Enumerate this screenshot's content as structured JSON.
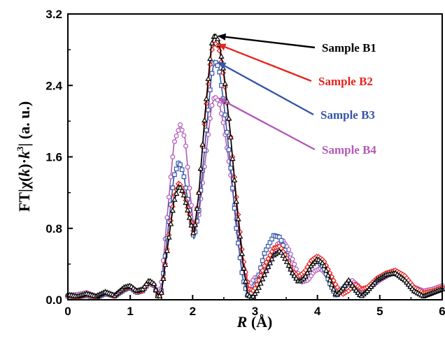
{
  "chart_data": {
    "type": "line",
    "xlabel_var": "R",
    "xlabel_unit": " (Å)",
    "ylabel_pre": "FT|χ(",
    "ylabel_k": "k",
    "ylabel_mid": ")·",
    "ylabel_k2": "k",
    "ylabel_sup": "3",
    "ylabel_post": "| (a. u.)",
    "xlim": [
      0,
      6
    ],
    "ylim": [
      0,
      3.2
    ],
    "xticks": [
      "0",
      "1",
      "2",
      "3",
      "4",
      "5",
      "6"
    ],
    "xtick_values": [
      0,
      1,
      2,
      3,
      4,
      5,
      6
    ],
    "yticks": [
      "0.0",
      "0.8",
      "1.6",
      "2.4",
      "3.2"
    ],
    "ytick_values": [
      0,
      0.8,
      1.6,
      2.4,
      3.2
    ],
    "grid": false,
    "series": [
      {
        "name": "Sample B1",
        "color": "#000000",
        "marker": "triangle",
        "label_color": "#000000",
        "peak": [
          2.35,
          2.97
        ],
        "points": [
          [
            0,
            0.06
          ],
          [
            0.15,
            0.04
          ],
          [
            0.3,
            0.07
          ],
          [
            0.45,
            0.04
          ],
          [
            0.6,
            0.09
          ],
          [
            0.75,
            0.05
          ],
          [
            0.9,
            0.14
          ],
          [
            1.0,
            0.16
          ],
          [
            1.1,
            0.1
          ],
          [
            1.2,
            0.12
          ],
          [
            1.3,
            0.22
          ],
          [
            1.38,
            0.18
          ],
          [
            1.45,
            0.02
          ],
          [
            1.5,
            0.08
          ],
          [
            1.6,
            0.6
          ],
          [
            1.7,
            1.1
          ],
          [
            1.78,
            1.28
          ],
          [
            1.85,
            1.2
          ],
          [
            1.95,
            0.92
          ],
          [
            2.02,
            0.72
          ],
          [
            2.1,
            1.2
          ],
          [
            2.2,
            2.1
          ],
          [
            2.3,
            2.85
          ],
          [
            2.35,
            2.97
          ],
          [
            2.42,
            2.9
          ],
          [
            2.5,
            2.55
          ],
          [
            2.6,
            1.9
          ],
          [
            2.7,
            1.1
          ],
          [
            2.8,
            0.45
          ],
          [
            2.88,
            0.06
          ],
          [
            2.95,
            0.02
          ],
          [
            3.05,
            0.12
          ],
          [
            3.15,
            0.28
          ],
          [
            3.3,
            0.5
          ],
          [
            3.4,
            0.55
          ],
          [
            3.5,
            0.44
          ],
          [
            3.6,
            0.3
          ],
          [
            3.7,
            0.2
          ],
          [
            3.8,
            0.25
          ],
          [
            3.9,
            0.38
          ],
          [
            4.0,
            0.46
          ],
          [
            4.1,
            0.4
          ],
          [
            4.2,
            0.22
          ],
          [
            4.3,
            0.05
          ],
          [
            4.4,
            0.12
          ],
          [
            4.5,
            0.22
          ],
          [
            4.6,
            0.12
          ],
          [
            4.7,
            0.04
          ],
          [
            4.8,
            0.1
          ],
          [
            4.95,
            0.22
          ],
          [
            5.1,
            0.28
          ],
          [
            5.25,
            0.3
          ],
          [
            5.4,
            0.22
          ],
          [
            5.55,
            0.1
          ],
          [
            5.7,
            0.04
          ],
          [
            5.85,
            0.08
          ],
          [
            6.0,
            0.12
          ]
        ]
      },
      {
        "name": "Sample B2",
        "color": "#e8231e",
        "marker": "diamond",
        "label_color": "#e8231e",
        "peak": [
          2.35,
          2.88
        ],
        "points": [
          [
            0,
            0.05
          ],
          [
            0.15,
            0.03
          ],
          [
            0.3,
            0.06
          ],
          [
            0.45,
            0.03
          ],
          [
            0.6,
            0.08
          ],
          [
            0.75,
            0.04
          ],
          [
            0.9,
            0.12
          ],
          [
            1.0,
            0.15
          ],
          [
            1.1,
            0.09
          ],
          [
            1.2,
            0.1
          ],
          [
            1.3,
            0.2
          ],
          [
            1.38,
            0.17
          ],
          [
            1.45,
            0.03
          ],
          [
            1.5,
            0.08
          ],
          [
            1.6,
            0.62
          ],
          [
            1.7,
            1.15
          ],
          [
            1.78,
            1.32
          ],
          [
            1.85,
            1.22
          ],
          [
            1.95,
            0.95
          ],
          [
            2.02,
            0.74
          ],
          [
            2.1,
            1.2
          ],
          [
            2.2,
            2.05
          ],
          [
            2.3,
            2.78
          ],
          [
            2.35,
            2.88
          ],
          [
            2.42,
            2.83
          ],
          [
            2.5,
            2.5
          ],
          [
            2.6,
            1.9
          ],
          [
            2.7,
            1.15
          ],
          [
            2.8,
            0.5
          ],
          [
            2.9,
            0.12
          ],
          [
            2.98,
            0.1
          ],
          [
            3.05,
            0.2
          ],
          [
            3.15,
            0.38
          ],
          [
            3.3,
            0.58
          ],
          [
            3.4,
            0.6
          ],
          [
            3.5,
            0.48
          ],
          [
            3.6,
            0.32
          ],
          [
            3.7,
            0.26
          ],
          [
            3.8,
            0.32
          ],
          [
            3.9,
            0.44
          ],
          [
            4.0,
            0.49
          ],
          [
            4.1,
            0.44
          ],
          [
            4.2,
            0.3
          ],
          [
            4.3,
            0.16
          ],
          [
            4.4,
            0.06
          ],
          [
            4.5,
            0.1
          ],
          [
            4.6,
            0.18
          ],
          [
            4.7,
            0.12
          ],
          [
            4.8,
            0.14
          ],
          [
            4.95,
            0.24
          ],
          [
            5.1,
            0.3
          ],
          [
            5.25,
            0.33
          ],
          [
            5.4,
            0.27
          ],
          [
            5.55,
            0.14
          ],
          [
            5.7,
            0.08
          ],
          [
            5.85,
            0.1
          ],
          [
            6.0,
            0.14
          ]
        ]
      },
      {
        "name": "Sample B3",
        "color": "#3455a8",
        "marker": "square",
        "label_color": "#3455a8",
        "peak": [
          2.35,
          2.68
        ],
        "points": [
          [
            0,
            0.04
          ],
          [
            0.15,
            0.03
          ],
          [
            0.3,
            0.05
          ],
          [
            0.45,
            0.02
          ],
          [
            0.6,
            0.07
          ],
          [
            0.75,
            0.04
          ],
          [
            0.9,
            0.11
          ],
          [
            1.0,
            0.14
          ],
          [
            1.1,
            0.08
          ],
          [
            1.2,
            0.1
          ],
          [
            1.3,
            0.19
          ],
          [
            1.38,
            0.16
          ],
          [
            1.45,
            0.03
          ],
          [
            1.5,
            0.1
          ],
          [
            1.6,
            0.75
          ],
          [
            1.7,
            1.38
          ],
          [
            1.78,
            1.55
          ],
          [
            1.85,
            1.42
          ],
          [
            1.95,
            1.0
          ],
          [
            2.02,
            0.68
          ],
          [
            2.1,
            1.0
          ],
          [
            2.2,
            1.75
          ],
          [
            2.3,
            2.5
          ],
          [
            2.35,
            2.68
          ],
          [
            2.42,
            2.6
          ],
          [
            2.5,
            2.2
          ],
          [
            2.6,
            1.55
          ],
          [
            2.7,
            0.8
          ],
          [
            2.8,
            0.25
          ],
          [
            2.88,
            0.05
          ],
          [
            2.95,
            0.08
          ],
          [
            3.05,
            0.25
          ],
          [
            3.15,
            0.52
          ],
          [
            3.3,
            0.72
          ],
          [
            3.4,
            0.7
          ],
          [
            3.5,
            0.52
          ],
          [
            3.6,
            0.3
          ],
          [
            3.7,
            0.2
          ],
          [
            3.8,
            0.28
          ],
          [
            3.9,
            0.4
          ],
          [
            4.0,
            0.44
          ],
          [
            4.1,
            0.36
          ],
          [
            4.2,
            0.18
          ],
          [
            4.3,
            0.04
          ],
          [
            4.4,
            0.12
          ],
          [
            4.5,
            0.2
          ],
          [
            4.6,
            0.12
          ],
          [
            4.7,
            0.04
          ],
          [
            4.8,
            0.1
          ],
          [
            4.95,
            0.22
          ],
          [
            5.1,
            0.28
          ],
          [
            5.25,
            0.3
          ],
          [
            5.4,
            0.22
          ],
          [
            5.55,
            0.1
          ],
          [
            5.7,
            0.06
          ],
          [
            5.85,
            0.09
          ],
          [
            6.0,
            0.13
          ]
        ]
      },
      {
        "name": "Sample B4",
        "color": "#b05ab8",
        "marker": "circle",
        "label_color": "#b05ab8",
        "peak": [
          2.35,
          2.28
        ],
        "points": [
          [
            0,
            0.05
          ],
          [
            0.15,
            0.06
          ],
          [
            0.3,
            0.08
          ],
          [
            0.45,
            0.04
          ],
          [
            0.6,
            0.08
          ],
          [
            0.75,
            0.05
          ],
          [
            0.9,
            0.13
          ],
          [
            1.0,
            0.15
          ],
          [
            1.1,
            0.1
          ],
          [
            1.2,
            0.12
          ],
          [
            1.3,
            0.2
          ],
          [
            1.38,
            0.16
          ],
          [
            1.45,
            0.06
          ],
          [
            1.5,
            0.2
          ],
          [
            1.6,
            1.0
          ],
          [
            1.7,
            1.75
          ],
          [
            1.8,
            1.96
          ],
          [
            1.88,
            1.8
          ],
          [
            1.95,
            1.25
          ],
          [
            2.02,
            0.8
          ],
          [
            2.1,
            0.95
          ],
          [
            2.2,
            1.55
          ],
          [
            2.3,
            2.15
          ],
          [
            2.35,
            2.28
          ],
          [
            2.42,
            2.22
          ],
          [
            2.5,
            1.95
          ],
          [
            2.6,
            1.45
          ],
          [
            2.7,
            0.9
          ],
          [
            2.8,
            0.4
          ],
          [
            2.9,
            0.15
          ],
          [
            3.0,
            0.25
          ],
          [
            3.1,
            0.25
          ],
          [
            3.2,
            0.35
          ],
          [
            3.35,
            0.62
          ],
          [
            3.45,
            0.66
          ],
          [
            3.55,
            0.55
          ],
          [
            3.65,
            0.36
          ],
          [
            3.75,
            0.2
          ],
          [
            3.85,
            0.22
          ],
          [
            3.95,
            0.32
          ],
          [
            4.05,
            0.35
          ],
          [
            4.15,
            0.28
          ],
          [
            4.25,
            0.14
          ],
          [
            4.35,
            0.08
          ],
          [
            4.45,
            0.16
          ],
          [
            4.55,
            0.22
          ],
          [
            4.65,
            0.16
          ],
          [
            4.75,
            0.08
          ],
          [
            4.85,
            0.14
          ],
          [
            5.0,
            0.22
          ],
          [
            5.15,
            0.28
          ],
          [
            5.25,
            0.3
          ],
          [
            5.4,
            0.24
          ],
          [
            5.55,
            0.14
          ],
          [
            5.7,
            0.1
          ],
          [
            5.85,
            0.12
          ],
          [
            6.0,
            0.16
          ]
        ]
      }
    ],
    "annotations": [
      {
        "series": 0,
        "text": "Sample B1",
        "color": "#000000"
      },
      {
        "series": 1,
        "text": "Sample B2",
        "color": "#e8231e"
      },
      {
        "series": 2,
        "text": "Sample B3",
        "color": "#3455a8"
      },
      {
        "series": 3,
        "text": "Sample B4",
        "color": "#b05ab8"
      }
    ]
  }
}
